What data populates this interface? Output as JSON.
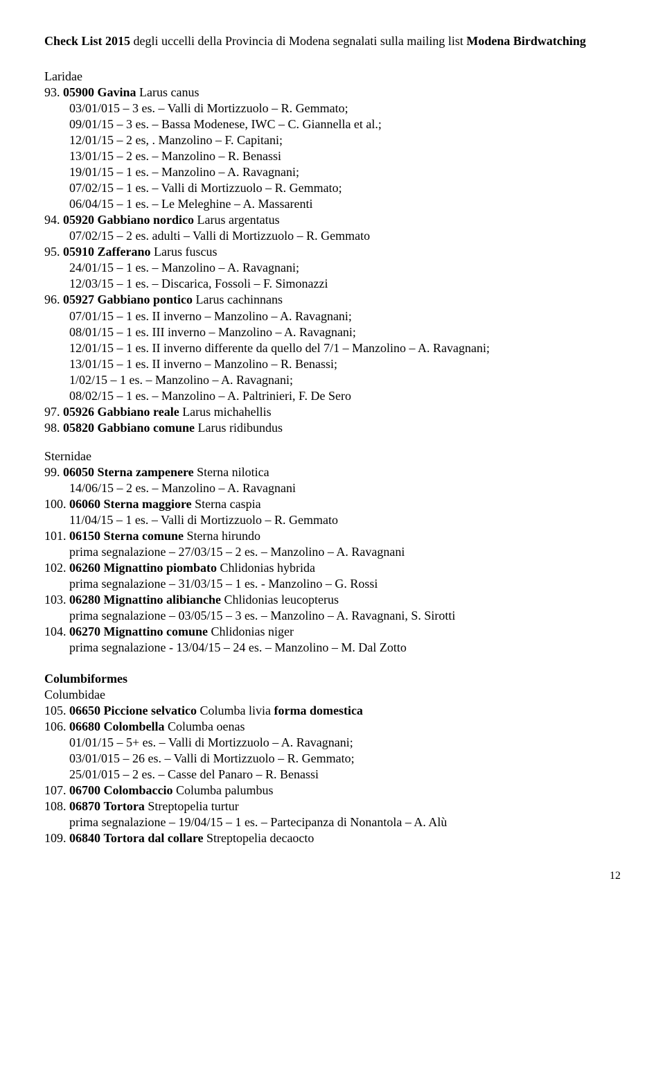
{
  "header": {
    "prefix_bold": "Check List 2015",
    "mid": " degli uccelli  della Provincia di Modena segnalati sulla mailing list ",
    "suffix_bold": "Modena Birdwatching"
  },
  "families": [
    {
      "name": "Laridae",
      "entries": [
        {
          "num": "93.",
          "code": "05900",
          "common": "Gavina",
          "sci": "Larus canus",
          "obs": [
            "03/01/015 – 3 es. – Valli di Mortizzuolo – R. Gemmato;",
            "09/01/15 – 3 es. – Bassa Modenese, IWC – C. Giannella et al.;",
            "12/01/15 – 2 es, . Manzolino – F. Capitani;",
            "13/01/15 – 2 es. – Manzolino – R. Benassi",
            "19/01/15 – 1 es. – Manzolino – A. Ravagnani;",
            "07/02/15 – 1 es. – Valli di Mortizzuolo – R. Gemmato;",
            "06/04/15 – 1 es. – Le Meleghine – A. Massarenti"
          ]
        },
        {
          "num": "94.",
          "code": "05920",
          "common": "Gabbiano nordico",
          "sci": "Larus argentatus",
          "obs": [
            "07/02/15 – 2 es. adulti – Valli di Mortizzuolo – R. Gemmato"
          ]
        },
        {
          "num": "95.",
          "code": "05910",
          "common": "Zafferano",
          "sci": "Larus fuscus",
          "obs": [
            "24/01/15 – 1 es. – Manzolino – A. Ravagnani;",
            "12/03/15 – 1 es. – Discarica, Fossoli – F. Simonazzi"
          ]
        },
        {
          "num": "96.",
          "code": "05927",
          "common": "Gabbiano pontico",
          "sci": "Larus cachinnans",
          "obs": [
            "07/01/15 – 1 es. II inverno – Manzolino – A. Ravagnani;",
            "08/01/15 – 1 es. III inverno – Manzolino – A. Ravagnani;",
            "12/01/15 – 1 es. II inverno  differente da quello del 7/1 – Manzolino – A. Ravagnani;",
            "13/01/15 – 1 es. II inverno – Manzolino – R. Benassi;",
            "1/02/15 – 1 es. – Manzolino – A. Ravagnani;",
            "08/02/15 – 1 es. – Manzolino – A. Paltrinieri, F. De Sero"
          ]
        },
        {
          "num": "97.",
          "code": "05926",
          "common": "Gabbiano reale",
          "sci": "Larus michahellis",
          "obs": []
        },
        {
          "num": "98.",
          "code": "05820",
          "common": "Gabbiano comune",
          "sci": "Larus ridibundus",
          "obs": []
        }
      ]
    },
    {
      "name": "Sternidae",
      "entries": [
        {
          "num": "99.",
          "code": "06050",
          "common": "Sterna zampenere",
          "sci": "Sterna nilotica",
          "obs": [
            "14/06/15 – 2 es. – Manzolino – A. Ravagnani"
          ]
        },
        {
          "num": "100.",
          "code": "06060",
          "common": "Sterna maggiore",
          "sci": "Sterna caspia",
          "obs": [
            "11/04/15 – 1 es. – Valli di Mortizzuolo – R. Gemmato"
          ]
        },
        {
          "num": "101.",
          "code": "06150",
          "common": "Sterna comune",
          "sci": "Sterna hirundo",
          "obs": [
            "prima segnalazione – 27/03/15 – 2 es. – Manzolino – A. Ravagnani"
          ]
        },
        {
          "num": "102.",
          "code": "06260",
          "common": "Mignattino piombato",
          "sci": "Chlidonias hybrida",
          "obs": [
            "prima segnalazione – 31/03/15 – 1 es. - Manzolino – G. Rossi"
          ]
        },
        {
          "num": "103.",
          "code": "06280",
          "common": "Mignattino alibianche",
          "sci": "Chlidonias leucopterus",
          "obs": [
            "prima segnalazione – 03/05/15 – 3 es. – Manzolino – A. Ravagnani, S. Sirotti"
          ]
        },
        {
          "num": "104.",
          "code": "06270",
          "common": "Mignattino comune",
          "sci": "Chlidonias niger",
          "obs": [
            "prima segnalazione - 13/04/15 – 24 es. – Manzolino – M. Dal Zotto"
          ]
        }
      ]
    }
  ],
  "order": {
    "name": "Columbiformes",
    "family": "Columbidae",
    "entries": [
      {
        "num": "105.",
        "code": "06650",
        "common": "Piccione selvatico",
        "sci": "Columba livia",
        "suffix_bold": " forma domestica",
        "obs": []
      },
      {
        "num": "106.",
        "code": "06680",
        "common": "Colombella",
        "sci": "Columba oenas",
        "obs": [
          "01/01/15 – 5+ es. – Valli di Mortizzuolo – A. Ravagnani;",
          "03/01/015 – 26 es. – Valli di Mortizzuolo – R. Gemmato;",
          "25/01/015 – 2 es. – Casse del Panaro – R. Benassi"
        ]
      },
      {
        "num": "107.",
        "code": "06700",
        "common": "Colombaccio",
        "sci": "Columba palumbus",
        "obs": []
      },
      {
        "num": "108.",
        "code": "06870",
        "common": "Tortora",
        "sci": "Streptopelia turtur",
        "obs": [
          "prima segnalazione – 19/04/15 – 1 es. – Partecipanza di Nonantola – A. Alù"
        ]
      },
      {
        "num": "109.",
        "code": "06840",
        "common": "Tortora dal collare",
        "sci": "Streptopelia decaocto",
        "obs": []
      }
    ]
  },
  "page_number": "12"
}
